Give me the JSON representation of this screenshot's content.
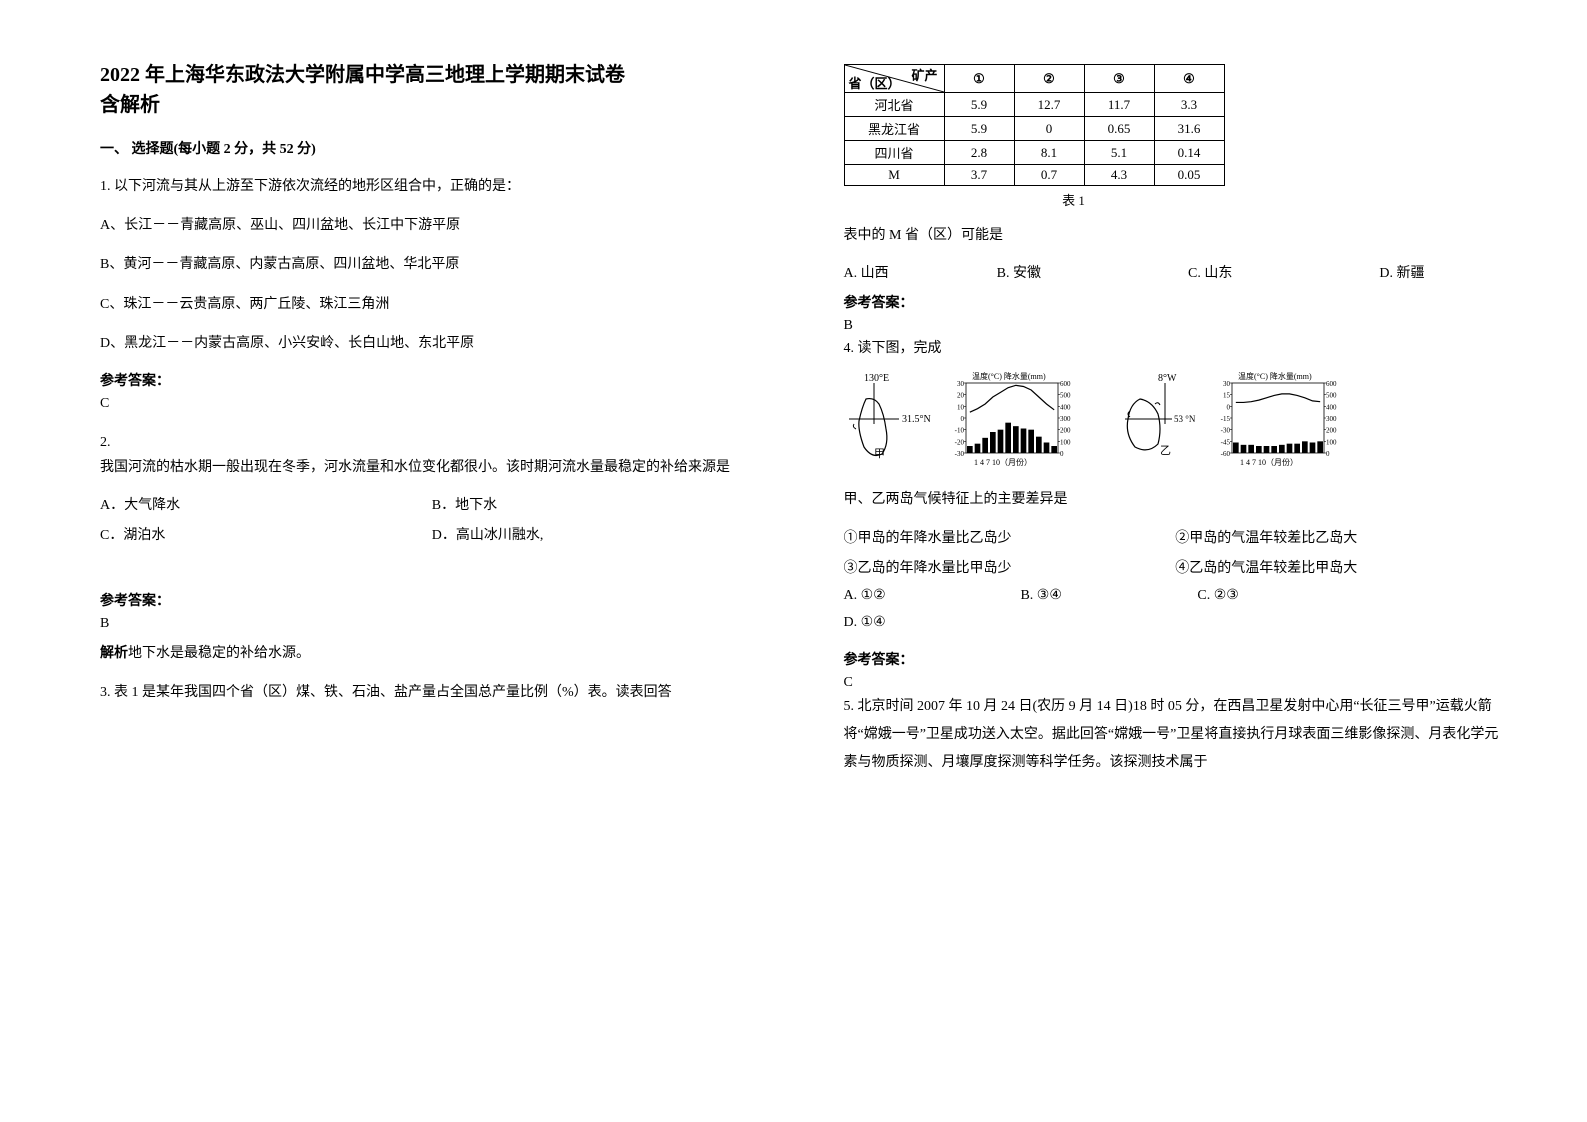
{
  "title_line1": "2022 年上海华东政法大学附属中学高三地理上学期期末试卷",
  "title_line2": "含解析",
  "section1": "一、 选择题(每小题 2 分，共 52 分)",
  "q1": {
    "stem": "1. 以下河流与其从上游至下游依次流经的地形区组合中，正确的是：",
    "A": "A、长江－－青藏高原、巫山、四川盆地、长江中下游平原",
    "B": "B、黄河－－青藏高原、内蒙古高原、四川盆地、华北平原",
    "C": "C、珠江－－云贵高原、两广丘陵、珠江三角洲",
    "D": "D、黑龙江－－内蒙古高原、小兴安岭、长白山地、东北平原",
    "answer_label": "参考答案：",
    "answer": "C"
  },
  "q2": {
    "num": "2.",
    "stem": "我国河流的枯水期一般出现在冬季，河水流量和水位变化都很小。该时期河流水量最稳定的补给来源是",
    "A": "A．大气降水",
    "B": "B．地下水",
    "C": "C．湖泊水",
    "D": "D．高山冰川融水,",
    "answer_label": "参考答案：",
    "answer": "B",
    "analysis_bold": "解析",
    "analysis_text": "地下水是最稳定的补给水源。"
  },
  "q3": {
    "stem": "3. 表 1 是某年我国四个省（区）煤、铁、石油、盐产量占全国总产量比例（%）表。读表回答"
  },
  "table": {
    "diag_top": "矿产",
    "diag_bottom": "省（区）",
    "cols": [
      "①",
      "②",
      "③",
      "④"
    ],
    "rows": [
      {
        "label": "河北省",
        "vals": [
          "5.9",
          "12.7",
          "11.7",
          "3.3"
        ]
      },
      {
        "label": "黑龙江省",
        "vals": [
          "5.9",
          "0",
          "0.65",
          "31.6"
        ]
      },
      {
        "label": "四川省",
        "vals": [
          "2.8",
          "8.1",
          "5.1",
          "0.14"
        ]
      },
      {
        "label": "M",
        "vals": [
          "3.7",
          "0.7",
          "4.3",
          "0.05"
        ]
      }
    ],
    "caption": "表 1"
  },
  "q3_sub": {
    "stem": "表中的 M 省（区）可能是",
    "A": "A. 山西",
    "B": "B. 安徽",
    "C": "C. 山东",
    "D": "D. 新疆",
    "answer_label": "参考答案：",
    "answer": "B"
  },
  "q4": {
    "stem": "4. 读下图，完成",
    "fig": {
      "map1": {
        "lon": "130°E",
        "lat": "31.5°N",
        "label": "甲"
      },
      "chart1": {
        "title": "温度(°C) 降水量(mm)",
        "temp_ticks": [
          "30",
          "20",
          "10",
          "0",
          "-10",
          "-20",
          "-30"
        ],
        "precip_ticks": [
          "600",
          "500",
          "400",
          "300",
          "200",
          "100",
          "0"
        ],
        "x_label": "1 4 7 10（月份）",
        "temp_line": [
          5,
          8,
          12,
          18,
          22,
          26,
          28,
          27,
          24,
          18,
          12,
          7
        ],
        "precip_bars": [
          60,
          80,
          130,
          180,
          200,
          260,
          230,
          210,
          200,
          140,
          90,
          60
        ]
      },
      "map2": {
        "lon": "8°W",
        "lat": "53 °N",
        "label": "乙"
      },
      "chart2": {
        "title": "温度(°C) 降水量(mm)",
        "temp_ticks": [
          "30",
          "15",
          "0",
          "-15",
          "-30",
          "-45",
          "-60"
        ],
        "precip_ticks": [
          "600",
          "500",
          "400",
          "300",
          "200",
          "100",
          "0"
        ],
        "x_label": "1 4 7 10（月份）",
        "temp_line": [
          5,
          5,
          6,
          8,
          11,
          14,
          16,
          16,
          14,
          11,
          7,
          6
        ],
        "precip_bars": [
          90,
          70,
          70,
          60,
          60,
          60,
          70,
          80,
          80,
          100,
          90,
          100
        ]
      }
    },
    "stem2": "甲、乙两岛气候特征上的主要差异是",
    "s1": "①甲岛的年降水量比乙岛少",
    "s2": "②甲岛的气温年较差比乙岛大",
    "s3": "③乙岛的年降水量比甲岛少",
    "s4": "④乙岛的气温年较差比甲岛大",
    "A": "A. ①②",
    "B": "B. ③④",
    "C": "C. ②③",
    "D": "D. ①④",
    "answer_label": "参考答案：",
    "answer": "C"
  },
  "q5": {
    "stem": "5. 北京时间 2007 年 10 月 24 日(农历 9 月 14 日)18 时 05 分，在西昌卫星发射中心用“长征三号甲”运载火箭将“嫦娥一号”卫星成功送入太空。据此回答“嫦娥一号”卫星将直接执行月球表面三维影像探测、月表化学元素与物质探测、月壤厚度探测等科学任务。该探测技术属于"
  },
  "style": {
    "text_color": "#000000",
    "bg_color": "#ffffff",
    "border_color": "#000000",
    "bar_color": "#000000",
    "line_color": "#000000"
  }
}
